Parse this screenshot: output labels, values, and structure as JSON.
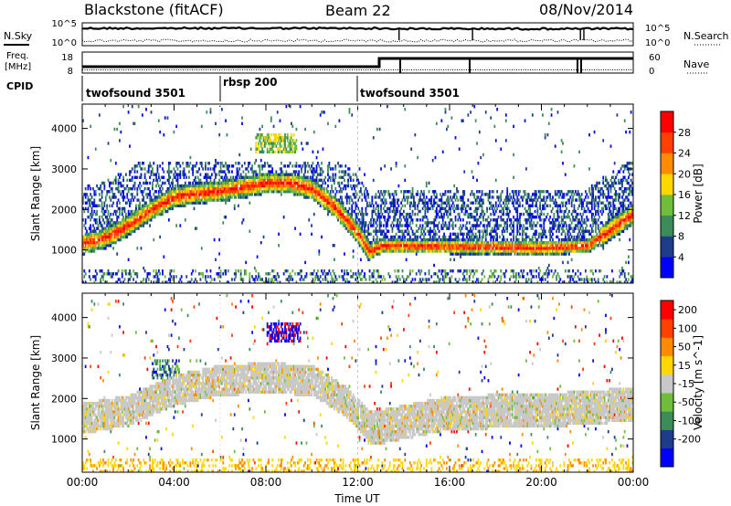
{
  "header": {
    "radar": "Blackstone (fitACF)",
    "beam": "Beam 22",
    "date": "08/Nov/2014"
  },
  "nsky_panel": {
    "left_label": "N.Sky",
    "right_label": "N.Search",
    "left_ticks": [
      "10^5",
      "10^0"
    ],
    "right_ticks": [
      "10^5",
      "10^0"
    ]
  },
  "freq_panel": {
    "left_label_1": "Freq.",
    "left_label_2": "[MHz]",
    "right_label": "Nave",
    "left_ticks": [
      "18",
      "8"
    ],
    "right_ticks": [
      "60",
      "0"
    ]
  },
  "cpid": {
    "label": "CPID",
    "segments": [
      {
        "name": "twofsound 3501",
        "start": 0,
        "end": 6
      },
      {
        "name": "rbsp 200",
        "start": 6,
        "end": 12
      },
      {
        "name": "twofsound 3501",
        "start": 12,
        "end": 24
      }
    ]
  },
  "power_panel": {
    "ylabel": "Slant Range [km]",
    "yticks": [
      1000,
      2000,
      3000,
      4000
    ],
    "ylim": [
      180,
      4600
    ],
    "colorbar_label": "Power [dB]",
    "colorbar_ticks": [
      "4",
      "8",
      "12",
      "16",
      "20",
      "24",
      "28"
    ],
    "colors": [
      "#0000ff",
      "#1e3c8c",
      "#3c8c5a",
      "#6ebe3c",
      "#ffd700",
      "#ff8c00",
      "#ff4000",
      "#ff0000"
    ]
  },
  "velocity_panel": {
    "ylabel": "Slant Range [km]",
    "yticks": [
      1000,
      2000,
      3000,
      4000
    ],
    "ylim": [
      180,
      4600
    ],
    "colorbar_label": "Velocity [m s^-1]",
    "colorbar_ticks": [
      "200",
      "100",
      "50",
      "15",
      "-15",
      "-50",
      "-100",
      "-200"
    ],
    "colors": [
      "#0000ff",
      "#1e3c8c",
      "#3c8c5a",
      "#6ebe3c",
      "#c8c8c8",
      "#ffd700",
      "#ff8c00",
      "#ff4000",
      "#ff0000"
    ]
  },
  "xaxis": {
    "label": "Time UT",
    "ticks": [
      "00:00",
      "04:00",
      "08:00",
      "12:00",
      "16:00",
      "20:00",
      "00:00"
    ],
    "xlim": [
      0,
      24
    ]
  },
  "chart_data": {
    "type": "heatmap",
    "title": "Blackstone (fitACF)",
    "x_unit": "hours UT",
    "power_band_center_km": [
      [
        0,
        1150
      ],
      [
        1,
        1300
      ],
      [
        2,
        1600
      ],
      [
        3,
        2000
      ],
      [
        4,
        2300
      ],
      [
        5,
        2400
      ],
      [
        6,
        2450
      ],
      [
        7,
        2550
      ],
      [
        8,
        2650
      ],
      [
        9,
        2650
      ],
      [
        10,
        2500
      ],
      [
        11,
        2050
      ],
      [
        12,
        1400
      ],
      [
        12.5,
        950
      ],
      [
        13,
        1100
      ],
      [
        16,
        1080
      ],
      [
        20,
        1050
      ],
      [
        22,
        1100
      ],
      [
        23,
        1500
      ],
      [
        24,
        1900
      ]
    ],
    "velocity_band_center_km": [
      [
        0,
        1500
      ],
      [
        2,
        1700
      ],
      [
        4,
        2200
      ],
      [
        6,
        2450
      ],
      [
        8,
        2500
      ],
      [
        10,
        2450
      ],
      [
        11.5,
        1900
      ],
      [
        12.5,
        1300
      ],
      [
        13,
        1300
      ],
      [
        16,
        1650
      ],
      [
        20,
        1700
      ],
      [
        24,
        1850
      ]
    ]
  }
}
